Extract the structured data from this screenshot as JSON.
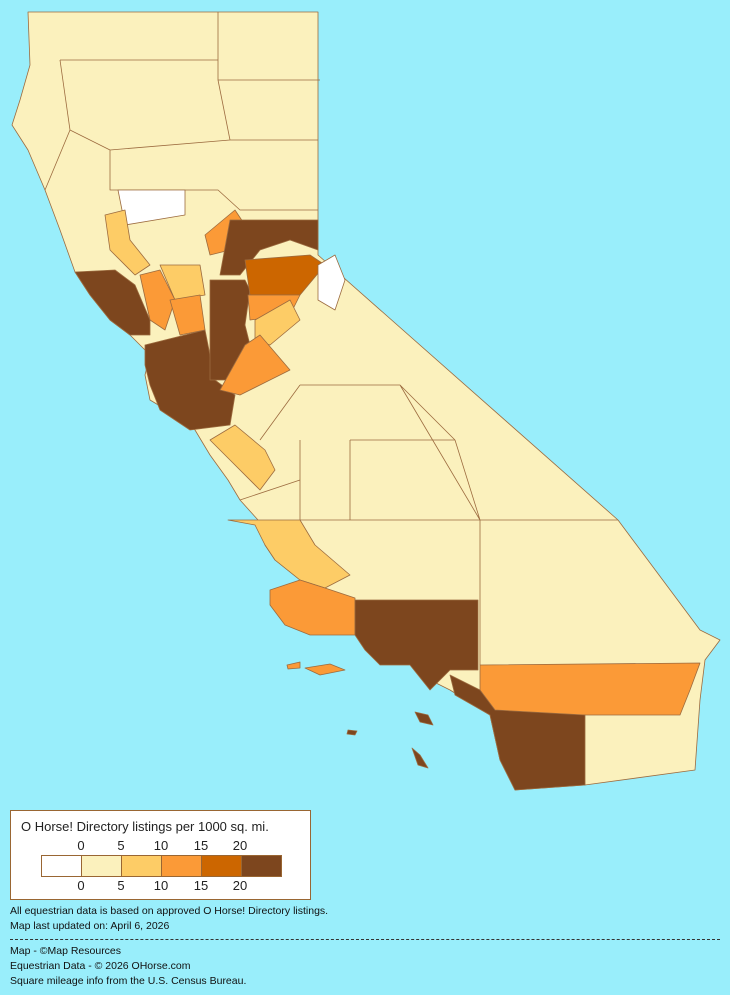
{
  "legend": {
    "title": "O Horse! Directory listings per 1000 sq. mi.",
    "ticks": [
      "0",
      "5",
      "10",
      "15",
      "20"
    ],
    "colors": [
      "#FFFFFF",
      "#FBF1BD",
      "#FDCC66",
      "#FB9A37",
      "#CC6600",
      "#7D461E"
    ]
  },
  "notes": {
    "line1": "All equestrian data is based on approved O Horse! Directory listings.",
    "line2": "Map last updated on: April 6, 2026",
    "credit1": "Map - ©Map Resources",
    "credit2": "Equestrian Data - © 2026 OHorse.com",
    "credit3": "Square mileage info from the U.S. Census Bureau."
  },
  "colors": {
    "background": "#99EEFB",
    "border": "#996633"
  }
}
